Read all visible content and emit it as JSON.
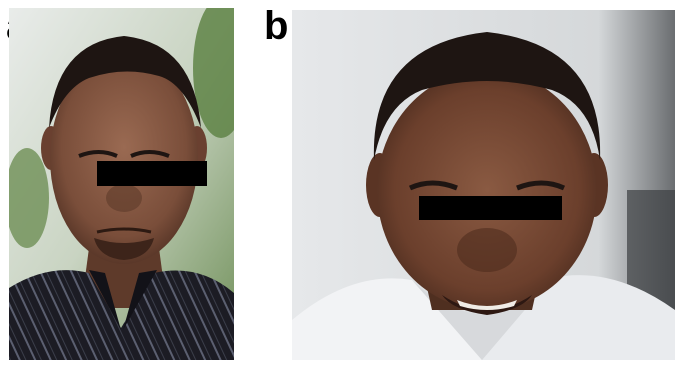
{
  "figure": {
    "panels": [
      {
        "label": "a",
        "image_description_icon": "photo-icon",
        "censor_bar_color": "#000000"
      },
      {
        "label": "b",
        "image_description_icon": "photo-icon",
        "censor_bar_color": "#000000"
      }
    ],
    "colors": {
      "skin_a": "#7a4e3a",
      "skin_b": "#6b3f2c",
      "hair": "#1e1512",
      "shirt_a": "#1c1c24",
      "shirt_b": "#eef0f2",
      "bg_a": "#93b07a",
      "bg_b": "#dde0e2"
    }
  }
}
